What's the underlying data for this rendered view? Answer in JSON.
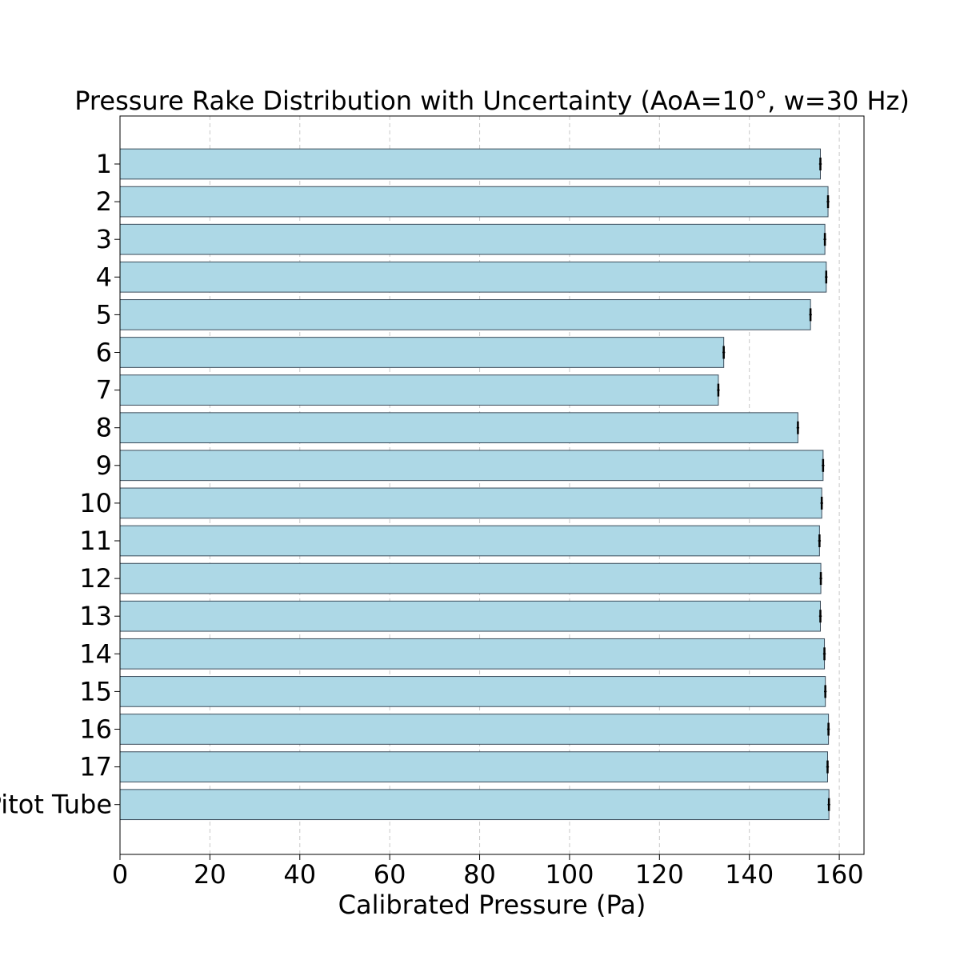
{
  "chart_data": {
    "type": "bar",
    "orientation": "horizontal",
    "title": "Pressure Rake Distribution with Uncertainty (AoA=10°, w=30 Hz)",
    "xlabel": "Calibrated Pressure (Pa)",
    "ylabel": "",
    "xlim": [
      0,
      165.5
    ],
    "xticks": [
      0,
      20,
      40,
      60,
      80,
      100,
      120,
      140,
      160
    ],
    "grid": "x-dashed",
    "categories": [
      "1",
      "2",
      "3",
      "4",
      "5",
      "6",
      "7",
      "8",
      "9",
      "10",
      "11",
      "12",
      "13",
      "14",
      "15",
      "16",
      "17",
      "Pitot Tube"
    ],
    "values": [
      155.8,
      157.5,
      156.8,
      157.1,
      153.6,
      134.3,
      133.1,
      150.8,
      156.4,
      156.1,
      155.6,
      155.9,
      155.8,
      156.7,
      156.9,
      157.6,
      157.4,
      157.7
    ],
    "errors": [
      0.3,
      0.3,
      0.3,
      0.3,
      0.3,
      0.3,
      0.3,
      0.3,
      0.3,
      0.3,
      0.3,
      0.3,
      0.3,
      0.3,
      0.3,
      0.3,
      0.3,
      0.3
    ],
    "colors": {
      "bar_fill": "#add8e6",
      "bar_edge": "#3b4b5a",
      "error_bar": "#000000",
      "grid": "#c8c8c8",
      "axis": "#000000"
    }
  }
}
